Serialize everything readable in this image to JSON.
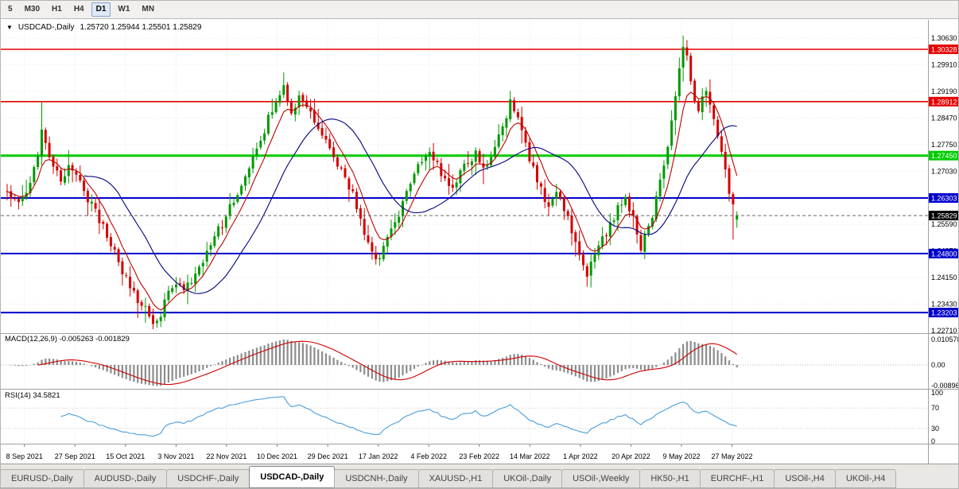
{
  "toolbar": {
    "timeframes": [
      {
        "label": "5",
        "active": false
      },
      {
        "label": "M30",
        "active": false
      },
      {
        "label": "H1",
        "active": false
      },
      {
        "label": "H4",
        "active": false
      },
      {
        "label": "D1",
        "active": true
      },
      {
        "label": "W1",
        "active": false
      },
      {
        "label": "MN",
        "active": false
      }
    ]
  },
  "chart": {
    "collapse_icon": "▼",
    "symbol_period": "USDCAD-,Daily",
    "ohlc_text": "1.25720 1.25944 1.25501 1.25829",
    "open": "1.25720",
    "high": "1.25944",
    "low": "1.25501",
    "close": "1.25829"
  },
  "price_axis": {
    "top_value": 1.3063,
    "step": 0.0072,
    "labels": [
      "1.30630",
      "1.29910",
      "1.29190",
      "1.28470",
      "1.27750",
      "1.27030",
      "1.26310",
      "1.25590",
      "1.24870",
      "1.24150",
      "1.23430",
      "1.22710"
    ]
  },
  "levels": [
    {
      "label": "1.30328",
      "value": 1.30328,
      "color": "#e60000",
      "width": 1.6
    },
    {
      "label": "1.28912",
      "value": 1.28912,
      "color": "#e60000",
      "width": 1.6
    },
    {
      "label": "1.27450",
      "value": 1.2745,
      "color": "#00cc00",
      "width": 3
    },
    {
      "label": "1.26303",
      "value": 1.26303,
      "color": "#0000cc",
      "width": 2
    },
    {
      "label": "1.24800",
      "value": 1.248,
      "color": "#0000cc",
      "width": 2
    },
    {
      "label": "1.23203",
      "value": 1.23203,
      "color": "#0000cc",
      "width": 2
    }
  ],
  "current_price": {
    "label": "1.25829",
    "value": 1.25829,
    "bg": "#000000"
  },
  "indicators": {
    "macd": {
      "label": "MACD(12,26,9) -0.005263 -0.001829",
      "value": "-0.005263",
      "signal_value": "-0.001829",
      "axis_labels": [
        {
          "text": "0.010578",
          "value": 0.010578
        },
        {
          "text": "0.00",
          "value": 0
        },
        {
          "text": "-0.00896",
          "value": -0.00896
        }
      ],
      "histogram_color": "#8c8c8c",
      "signal_color": "#cc0000"
    },
    "rsi": {
      "label": "RSI(14) 34.5821",
      "value": "34.5821",
      "axis_labels": [
        {
          "text": "100",
          "value": 100
        },
        {
          "text": "70",
          "value": 70
        },
        {
          "text": "30",
          "value": 30
        },
        {
          "text": "0",
          "value": 0
        }
      ],
      "line_color": "#4a9edb",
      "level_values": [
        70,
        30
      ]
    }
  },
  "date_axis": {
    "labels": [
      "8 Sep 2021",
      "27 Sep 2021",
      "15 Oct 2021",
      "3 Nov 2021",
      "22 Nov 2021",
      "10 Dec 2021",
      "29 Dec 2021",
      "17 Jan 2022",
      "4 Feb 2022",
      "23 Feb 2022",
      "14 Mar 2022",
      "1 Apr 2022",
      "20 Apr 2022",
      "9 May 2022",
      "27 May 2022"
    ]
  },
  "tabs": [
    {
      "label": "EURUSD-,Daily",
      "active": false
    },
    {
      "label": "AUDUSD-,Daily",
      "active": false
    },
    {
      "label": "USDCHF-,Daily",
      "active": false
    },
    {
      "label": "USDCAD-,Daily",
      "active": true
    },
    {
      "label": "USDCNH-,Daily",
      "active": false
    },
    {
      "label": "XAUUSD-,H1",
      "active": false
    },
    {
      "label": "UKOil-,Daily",
      "active": false
    },
    {
      "label": "USOil-,Weekly",
      "active": false
    },
    {
      "label": "HK50-,H1",
      "active": false
    },
    {
      "label": "EURCHF-,H1",
      "active": false
    },
    {
      "label": "USOil-,H4",
      "active": false
    },
    {
      "label": "UKOil-,H4",
      "active": false
    }
  ],
  "chart_data": {
    "type": "candlestick",
    "title": "USDCAD-,Daily",
    "bars": 191,
    "seed": 11,
    "price_range_visible": {
      "min": 1.2265,
      "max": 1.3112
    },
    "up_color": "#009900",
    "down_color": "#d40000",
    "fast_ma": {
      "type": "ema",
      "period": 7,
      "color": "#c00000"
    },
    "slow_ma": {
      "type": "sma",
      "period": 21,
      "color": "#000080"
    },
    "anchor_closes": [
      [
        0,
        1.2648
      ],
      [
        3,
        1.2622
      ],
      [
        6,
        1.2665
      ],
      [
        8,
        1.2745
      ],
      [
        9,
        1.2812
      ],
      [
        10,
        1.278
      ],
      [
        12,
        1.2712
      ],
      [
        14,
        1.268
      ],
      [
        16,
        1.2718
      ],
      [
        18,
        1.2688
      ],
      [
        20,
        1.2645
      ],
      [
        23,
        1.2598
      ],
      [
        26,
        1.2525
      ],
      [
        29,
        1.2455
      ],
      [
        32,
        1.239
      ],
      [
        35,
        1.2338
      ],
      [
        38,
        1.23
      ],
      [
        40,
        1.2318
      ],
      [
        42,
        1.2368
      ],
      [
        44,
        1.2398
      ],
      [
        46,
        1.238
      ],
      [
        48,
        1.2402
      ],
      [
        50,
        1.2438
      ],
      [
        53,
        1.2508
      ],
      [
        56,
        1.2562
      ],
      [
        59,
        1.2628
      ],
      [
        62,
        1.2692
      ],
      [
        65,
        1.276
      ],
      [
        67,
        1.2815
      ],
      [
        69,
        1.2872
      ],
      [
        71,
        1.2915
      ],
      [
        72,
        1.2935
      ],
      [
        74,
        1.2868
      ],
      [
        76,
        1.2902
      ],
      [
        78,
        1.2888
      ],
      [
        80,
        1.2842
      ],
      [
        82,
        1.2802
      ],
      [
        84,
        1.2772
      ],
      [
        86,
        1.2718
      ],
      [
        88,
        1.2678
      ],
      [
        90,
        1.2645
      ],
      [
        92,
        1.2575
      ],
      [
        94,
        1.2512
      ],
      [
        96,
        1.2468
      ],
      [
        98,
        1.2492
      ],
      [
        100,
        1.2542
      ],
      [
        102,
        1.2592
      ],
      [
        104,
        1.2648
      ],
      [
        106,
        1.2692
      ],
      [
        108,
        1.2728
      ],
      [
        110,
        1.2762
      ],
      [
        112,
        1.2718
      ],
      [
        114,
        1.2682
      ],
      [
        116,
        1.2662
      ],
      [
        118,
        1.2695
      ],
      [
        120,
        1.2728
      ],
      [
        122,
        1.2752
      ],
      [
        124,
        1.2712
      ],
      [
        126,
        1.2735
      ],
      [
        128,
        1.2792
      ],
      [
        130,
        1.2855
      ],
      [
        131,
        1.2895
      ],
      [
        133,
        1.2838
      ],
      [
        135,
        1.2772
      ],
      [
        137,
        1.2712
      ],
      [
        139,
        1.2652
      ],
      [
        141,
        1.2602
      ],
      [
        143,
        1.2638
      ],
      [
        145,
        1.2598
      ],
      [
        147,
        1.2542
      ],
      [
        149,
        1.2478
      ],
      [
        151,
        1.2428
      ],
      [
        153,
        1.2472
      ],
      [
        155,
        1.2518
      ],
      [
        157,
        1.2555
      ],
      [
        159,
        1.2598
      ],
      [
        161,
        1.2638
      ],
      [
        163,
        1.2572
      ],
      [
        165,
        1.2492
      ],
      [
        167,
        1.2548
      ],
      [
        169,
        1.2625
      ],
      [
        171,
        1.2715
      ],
      [
        173,
        1.2845
      ],
      [
        175,
        1.2985
      ],
      [
        176,
        1.3042
      ],
      [
        177,
        1.3012
      ],
      [
        178,
        1.2948
      ],
      [
        179,
        1.2895
      ],
      [
        180,
        1.2868
      ],
      [
        181,
        1.2898
      ],
      [
        182,
        1.2928
      ],
      [
        183,
        1.2892
      ],
      [
        184,
        1.2852
      ],
      [
        185,
        1.2802
      ],
      [
        186,
        1.2758
      ],
      [
        187,
        1.2705
      ],
      [
        188,
        1.2648
      ],
      [
        189,
        1.2602
      ],
      [
        190,
        1.2583
      ]
    ],
    "spike_highs": [
      {
        "index": 9,
        "high": 1.2892
      },
      {
        "index": 72,
        "high": 1.2962
      },
      {
        "index": 131,
        "high": 1.292
      },
      {
        "index": 176,
        "high": 1.307
      }
    ],
    "spike_lows": [
      {
        "index": 38,
        "low": 1.2288
      },
      {
        "index": 96,
        "low": 1.245
      },
      {
        "index": 151,
        "low": 1.2403
      },
      {
        "index": 189,
        "low": 1.2518
      }
    ],
    "last_bar": {
      "open": 1.2572,
      "high": 1.25944,
      "low": 1.25501,
      "close": 1.25829
    },
    "macd_norm_max": 0.0106
  }
}
